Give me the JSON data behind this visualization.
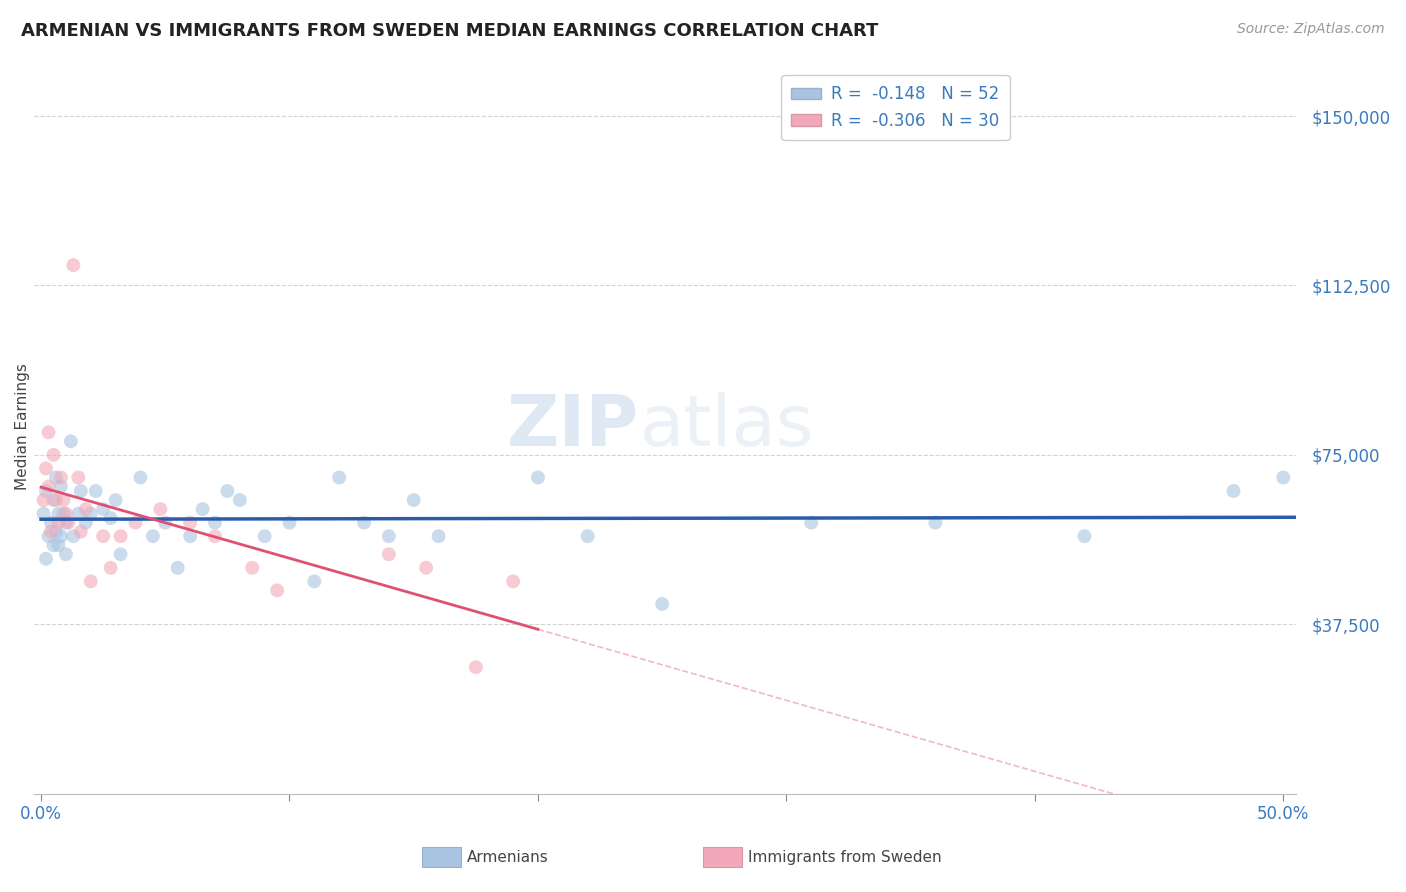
{
  "title": "ARMENIAN VS IMMIGRANTS FROM SWEDEN MEDIAN EARNINGS CORRELATION CHART",
  "source": "Source: ZipAtlas.com",
  "ylabel": "Median Earnings",
  "watermark_text": "ZIPatlas",
  "ytick_labels": [
    "$37,500",
    "$75,000",
    "$112,500",
    "$150,000"
  ],
  "ytick_values": [
    37500,
    75000,
    112500,
    150000
  ],
  "ymin": 0,
  "ymax": 162500,
  "xmin": -0.003,
  "xmax": 0.505,
  "legend_blue_label": "R =  -0.148   N = 52",
  "legend_pink_label": "R =  -0.306   N = 30",
  "blue_dot_color": "#a8c4e0",
  "pink_dot_color": "#f2a8b8",
  "blue_line_color": "#2a5caa",
  "pink_line_color": "#e05070",
  "title_fontsize": 13,
  "tick_color": "#3a7abf",
  "dot_alpha": 0.6,
  "dot_size": 100,
  "grid_color": "#c8c8c8",
  "background_color": "#ffffff",
  "arm_x": [
    0.001,
    0.002,
    0.002,
    0.003,
    0.004,
    0.005,
    0.005,
    0.006,
    0.006,
    0.007,
    0.007,
    0.008,
    0.008,
    0.009,
    0.01,
    0.01,
    0.012,
    0.013,
    0.015,
    0.016,
    0.018,
    0.02,
    0.022,
    0.025,
    0.028,
    0.03,
    0.032,
    0.04,
    0.045,
    0.05,
    0.055,
    0.06,
    0.065,
    0.07,
    0.075,
    0.08,
    0.09,
    0.1,
    0.11,
    0.12,
    0.13,
    0.14,
    0.15,
    0.16,
    0.2,
    0.22,
    0.25,
    0.31,
    0.36,
    0.42,
    0.48,
    0.5
  ],
  "arm_y": [
    62000,
    67000,
    52000,
    57000,
    60000,
    65000,
    55000,
    70000,
    58000,
    62000,
    55000,
    68000,
    57000,
    62000,
    60000,
    53000,
    78000,
    57000,
    62000,
    67000,
    60000,
    62000,
    67000,
    63000,
    61000,
    65000,
    53000,
    70000,
    57000,
    60000,
    50000,
    57000,
    63000,
    60000,
    67000,
    65000,
    57000,
    60000,
    47000,
    70000,
    60000,
    57000,
    65000,
    57000,
    70000,
    57000,
    42000,
    60000,
    60000,
    57000,
    67000,
    70000
  ],
  "swe_x": [
    0.001,
    0.002,
    0.003,
    0.003,
    0.004,
    0.005,
    0.006,
    0.007,
    0.008,
    0.009,
    0.01,
    0.011,
    0.013,
    0.015,
    0.016,
    0.018,
    0.02,
    0.025,
    0.028,
    0.032,
    0.038,
    0.048,
    0.06,
    0.07,
    0.085,
    0.095,
    0.14,
    0.155,
    0.175,
    0.19
  ],
  "swe_y": [
    65000,
    72000,
    80000,
    68000,
    58000,
    75000,
    65000,
    60000,
    70000,
    65000,
    62000,
    60000,
    117000,
    70000,
    58000,
    63000,
    47000,
    57000,
    50000,
    57000,
    60000,
    63000,
    60000,
    57000,
    50000,
    45000,
    53000,
    50000,
    28000,
    47000
  ]
}
